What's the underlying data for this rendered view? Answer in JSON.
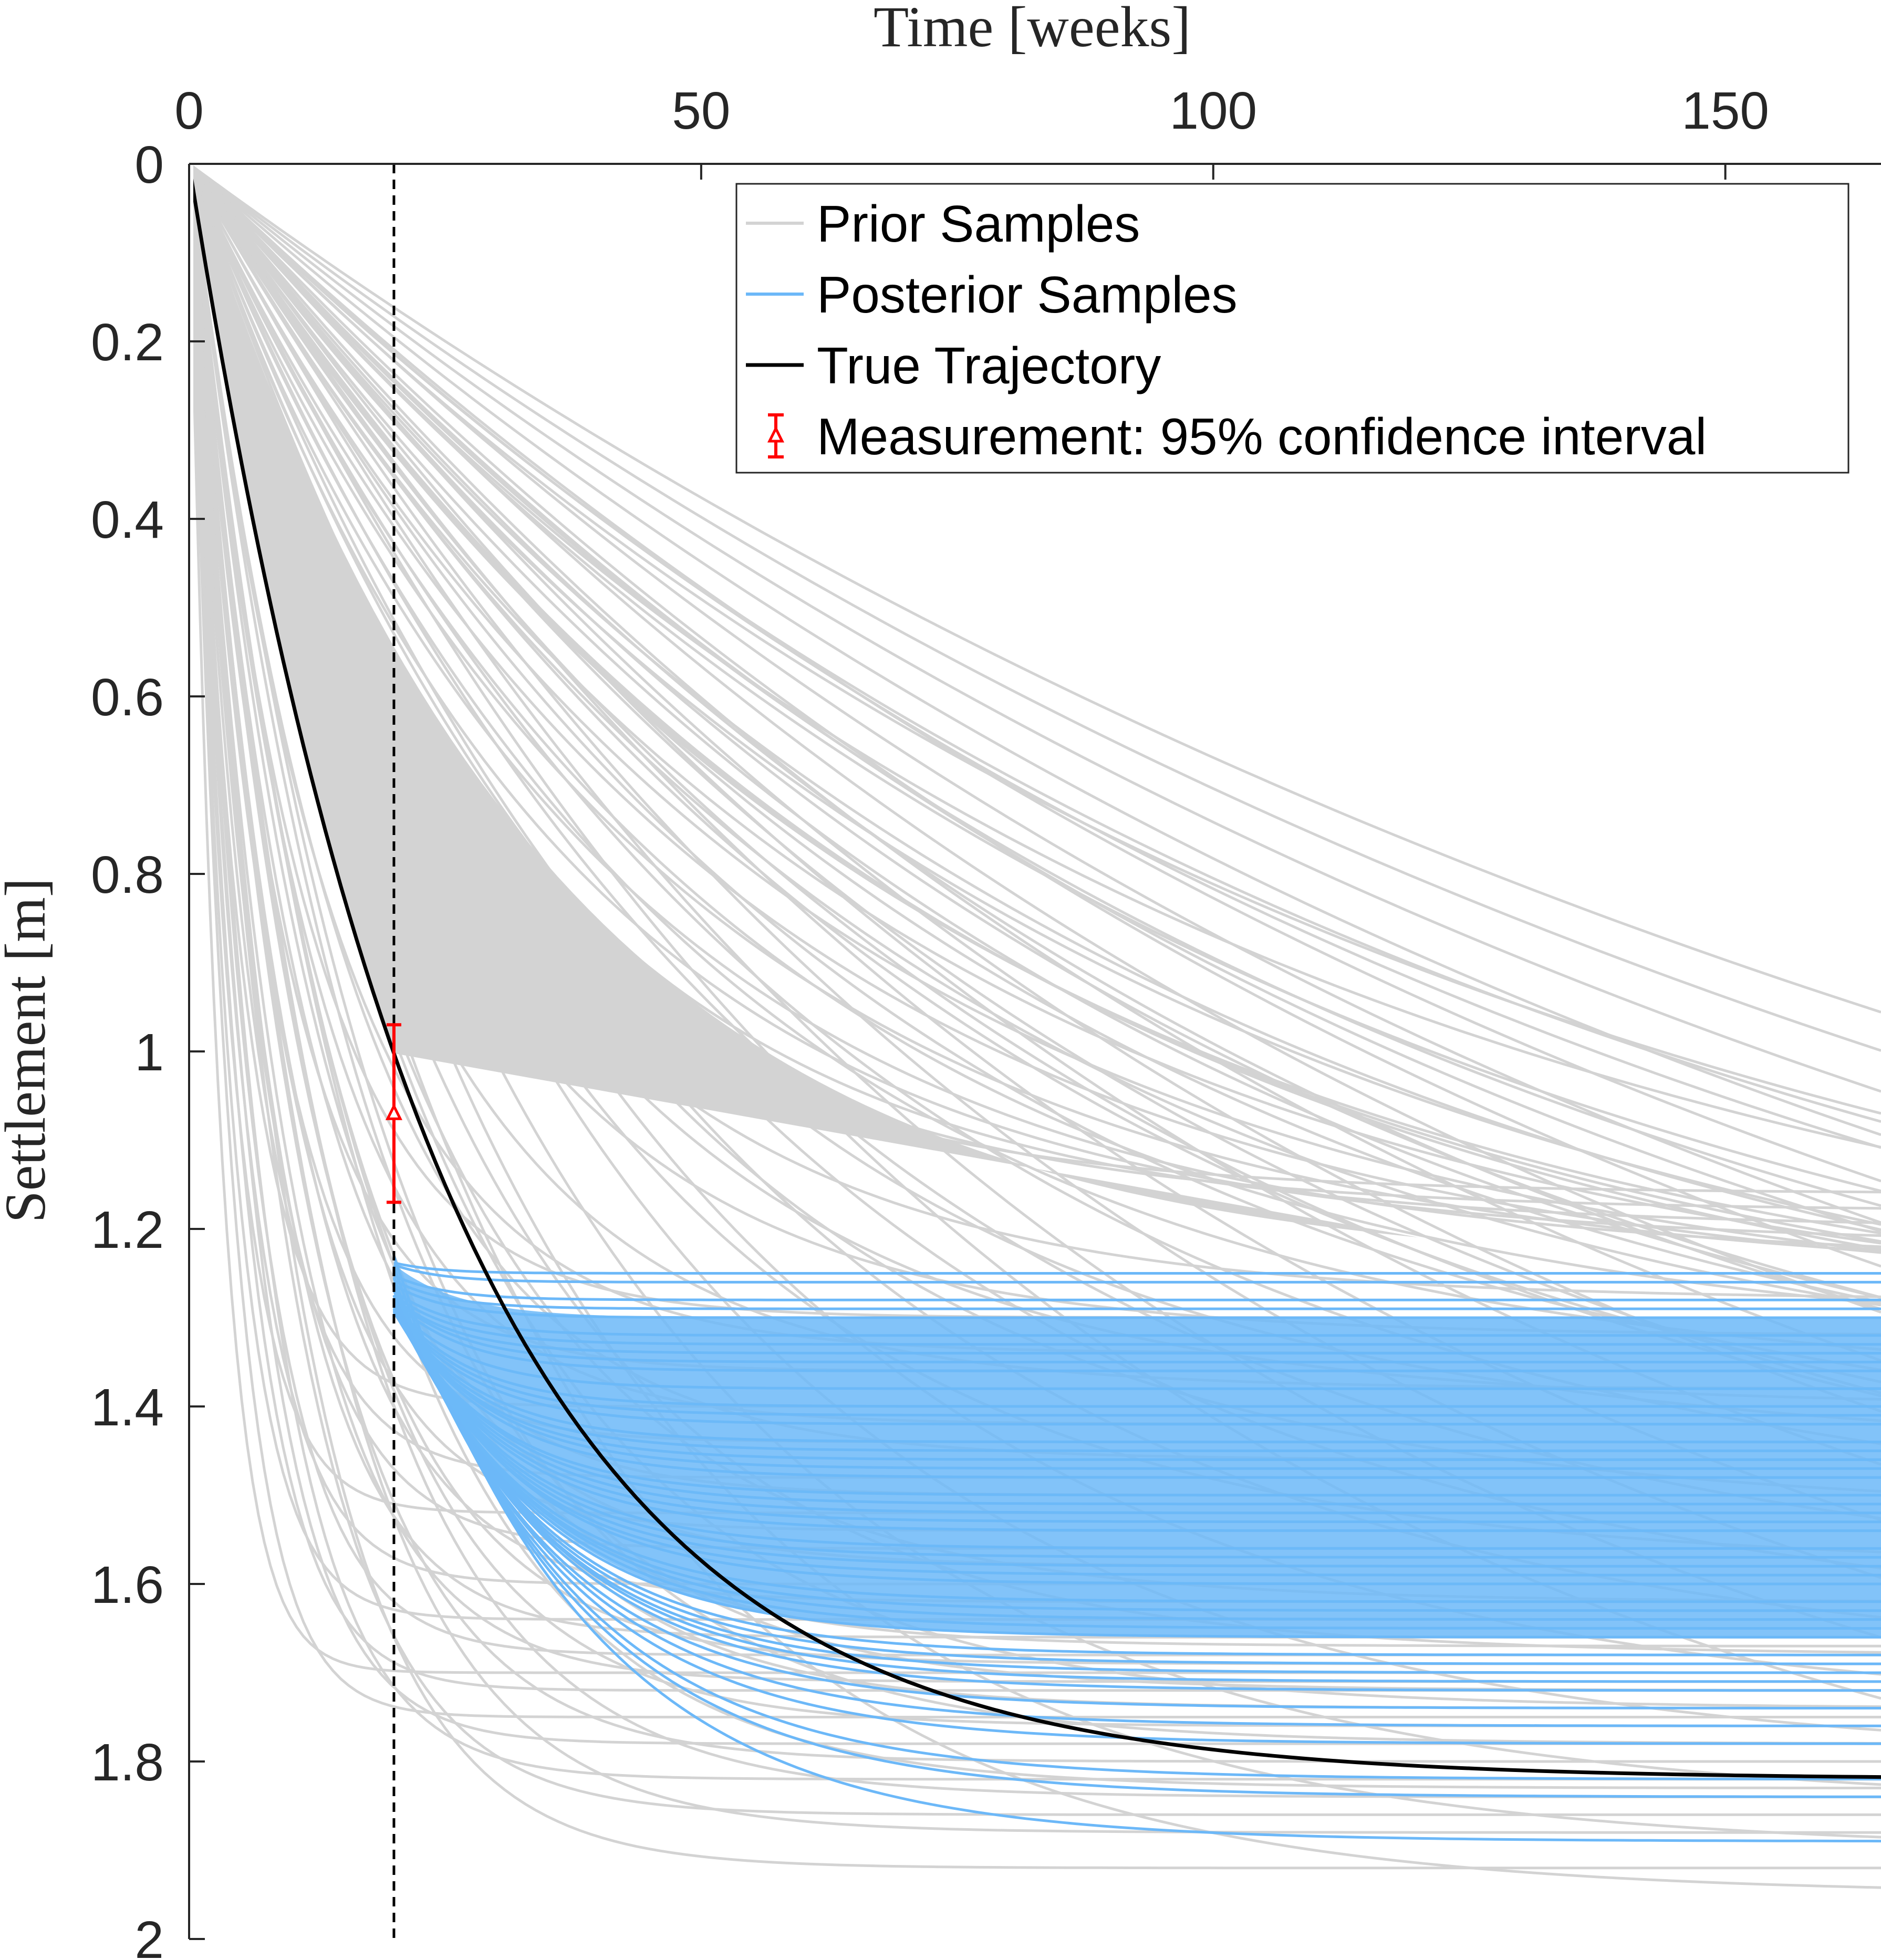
{
  "chart_data": {
    "type": "line",
    "title": "",
    "xlabel": "Time [weeks]",
    "ylabel": "Settlement [m]",
    "xlim": [
      0,
      160
    ],
    "ylim": [
      0,
      2
    ],
    "y_reversed": true,
    "x_axis_position": "top",
    "xticks": [
      0,
      50,
      100,
      150
    ],
    "xtick_labels": [
      "0",
      "50",
      "100",
      "150"
    ],
    "yticks": [
      0,
      0.2,
      0.4,
      0.6,
      0.8,
      1,
      1.2,
      1.4,
      1.6,
      1.8,
      2
    ],
    "ytick_labels": [
      "0",
      "0.2",
      "0.4",
      "0.6",
      "0.8",
      "1",
      "1.2",
      "1.4",
      "1.6",
      "1.8",
      "2"
    ],
    "grid": false,
    "measurement_time": 20,
    "legend": {
      "placement": "top-right",
      "entries": [
        {
          "label": "Prior Samples",
          "color": "#d3d3d3",
          "marker": "line"
        },
        {
          "label": "Posterior Samples",
          "color": "#6cb8f8",
          "marker": "line"
        },
        {
          "label": "True Trajectory",
          "color": "#000000",
          "marker": "line"
        },
        {
          "label": "Measurement: 95% confidence interval",
          "color": "#ff0000",
          "marker": "errorbar"
        }
      ]
    },
    "series": [
      {
        "name": "Prior Samples",
        "color": "#d3d3d3",
        "model": "settlement(t) = S_final * (1 - exp(-t / tau))",
        "samples": [
          {
            "S_final": 1.92,
            "tau": 10
          },
          {
            "S_final": 1.88,
            "tau": 12
          },
          {
            "S_final": 1.86,
            "tau": 9
          },
          {
            "S_final": 1.84,
            "tau": 14
          },
          {
            "S_final": 1.82,
            "tau": 7
          },
          {
            "S_final": 1.8,
            "tau": 11
          },
          {
            "S_final": 1.78,
            "tau": 6
          },
          {
            "S_final": 1.76,
            "tau": 13
          },
          {
            "S_final": 1.75,
            "tau": 4
          },
          {
            "S_final": 1.74,
            "tau": 16
          },
          {
            "S_final": 1.72,
            "tau": 5
          },
          {
            "S_final": 1.71,
            "tau": 9
          },
          {
            "S_final": 1.7,
            "tau": 3
          },
          {
            "S_final": 1.69,
            "tau": 12
          },
          {
            "S_final": 1.68,
            "tau": 6
          },
          {
            "S_final": 1.67,
            "tau": 15
          },
          {
            "S_final": 1.66,
            "tau": 8
          },
          {
            "S_final": 1.64,
            "tau": 4
          },
          {
            "S_final": 1.62,
            "tau": 10
          },
          {
            "S_final": 1.6,
            "tau": 5
          },
          {
            "S_final": 1.58,
            "tau": 13
          },
          {
            "S_final": 1.56,
            "tau": 7
          },
          {
            "S_final": 1.54,
            "tau": 9
          },
          {
            "S_final": 1.52,
            "tau": 4
          },
          {
            "S_final": 1.5,
            "tau": 11
          },
          {
            "S_final": 1.48,
            "tau": 6
          },
          {
            "S_final": 1.46,
            "tau": 16
          },
          {
            "S_final": 1.44,
            "tau": 8
          },
          {
            "S_final": 1.42,
            "tau": 12
          },
          {
            "S_final": 1.4,
            "tau": 5
          },
          {
            "S_final": 1.38,
            "tau": 20
          },
          {
            "S_final": 1.36,
            "tau": 9
          },
          {
            "S_final": 1.34,
            "tau": 14
          },
          {
            "S_final": 1.32,
            "tau": 24
          },
          {
            "S_final": 1.3,
            "tau": 11
          },
          {
            "S_final": 1.28,
            "tau": 28
          },
          {
            "S_final": 1.95,
            "tau": 30
          },
          {
            "S_final": 1.9,
            "tau": 34
          },
          {
            "S_final": 1.85,
            "tau": 38
          },
          {
            "S_final": 1.8,
            "tau": 42
          },
          {
            "S_final": 1.75,
            "tau": 46
          },
          {
            "S_final": 1.7,
            "tau": 50
          },
          {
            "S_final": 1.66,
            "tau": 54
          },
          {
            "S_final": 1.62,
            "tau": 58
          },
          {
            "S_final": 1.58,
            "tau": 36
          },
          {
            "S_final": 1.55,
            "tau": 62
          },
          {
            "S_final": 1.52,
            "tau": 40
          },
          {
            "S_final": 1.48,
            "tau": 66
          },
          {
            "S_final": 1.45,
            "tau": 44
          },
          {
            "S_final": 1.42,
            "tau": 70
          },
          {
            "S_final": 1.4,
            "tau": 32
          },
          {
            "S_final": 1.38,
            "tau": 48
          },
          {
            "S_final": 1.36,
            "tau": 74
          },
          {
            "S_final": 1.34,
            "tau": 52
          },
          {
            "S_final": 1.98,
            "tau": 80
          },
          {
            "S_final": 1.96,
            "tau": 88
          },
          {
            "S_final": 1.94,
            "tau": 96
          },
          {
            "S_final": 1.92,
            "tau": 104
          },
          {
            "S_final": 1.9,
            "tau": 112
          },
          {
            "S_final": 1.88,
            "tau": 120
          },
          {
            "S_final": 1.86,
            "tau": 128
          },
          {
            "S_final": 1.84,
            "tau": 136
          },
          {
            "S_final": 1.82,
            "tau": 144
          },
          {
            "S_final": 1.8,
            "tau": 152
          },
          {
            "S_final": 1.78,
            "tau": 160
          },
          {
            "S_final": 1.76,
            "tau": 170
          },
          {
            "S_final": 1.74,
            "tau": 180
          },
          {
            "S_final": 1.72,
            "tau": 190
          },
          {
            "S_final": 1.7,
            "tau": 200
          },
          {
            "S_final": 1.68,
            "tau": 95
          },
          {
            "S_final": 1.66,
            "tau": 110
          },
          {
            "S_final": 1.64,
            "tau": 125
          },
          {
            "S_final": 1.62,
            "tau": 85
          },
          {
            "S_final": 1.6,
            "tau": 140
          },
          {
            "S_final": 1.58,
            "tau": 100
          },
          {
            "S_final": 1.56,
            "tau": 78
          },
          {
            "S_final": 1.54,
            "tau": 115
          },
          {
            "S_final": 1.52,
            "tau": 90
          },
          {
            "S_final": 1.5,
            "tau": 130
          },
          {
            "S_final": 1.48,
            "tau": 82
          },
          {
            "S_final": 1.46,
            "tau": 105
          },
          {
            "S_final": 1.44,
            "tau": 92
          },
          {
            "S_final": 1.42,
            "tau": 118
          },
          {
            "S_final": 1.4,
            "tau": 86
          },
          {
            "S_final": 1.38,
            "tau": 76
          },
          {
            "S_final": 1.36,
            "tau": 98
          },
          {
            "S_final": 1.34,
            "tau": 72
          },
          {
            "S_final": 1.32,
            "tau": 65
          },
          {
            "S_final": 1.3,
            "tau": 58
          },
          {
            "S_final": 1.28,
            "tau": 52
          },
          {
            "S_final": 1.26,
            "tau": 46
          },
          {
            "S_final": 1.24,
            "tau": 40
          },
          {
            "S_final": 1.22,
            "tau": 36
          },
          {
            "S_final": 1.2,
            "tau": 32
          },
          {
            "S_final": 1.18,
            "tau": 28
          },
          {
            "S_final": 1.16,
            "tau": 25
          },
          {
            "S_final": 1.62,
            "tau": 22
          },
          {
            "S_final": 1.68,
            "tau": 26
          },
          {
            "S_final": 1.72,
            "tau": 18
          },
          {
            "S_final": 1.74,
            "tau": 24
          },
          {
            "S_final": 1.78,
            "tau": 20
          },
          {
            "S_final": 1.83,
            "tau": 17
          }
        ]
      },
      {
        "name": "Posterior Samples",
        "color": "#6cb8f8",
        "t_start": 20,
        "model": "settlement(t) = S_final * (1 - exp(-t / tau))",
        "samples": [
          {
            "S_final": 1.25,
            "tau": 4.3
          },
          {
            "S_final": 1.26,
            "tau": 4.8
          },
          {
            "S_final": 1.28,
            "tau": 5.2
          },
          {
            "S_final": 1.3,
            "tau": 5.6
          },
          {
            "S_final": 1.32,
            "tau": 6.1
          },
          {
            "S_final": 1.34,
            "tau": 6.5
          },
          {
            "S_final": 1.36,
            "tau": 7.0
          },
          {
            "S_final": 1.38,
            "tau": 7.4
          },
          {
            "S_final": 1.4,
            "tau": 7.9
          },
          {
            "S_final": 1.42,
            "tau": 8.3
          },
          {
            "S_final": 1.44,
            "tau": 8.8
          },
          {
            "S_final": 1.46,
            "tau": 9.2
          },
          {
            "S_final": 1.48,
            "tau": 9.7
          },
          {
            "S_final": 1.5,
            "tau": 10.1
          },
          {
            "S_final": 1.52,
            "tau": 10.6
          },
          {
            "S_final": 1.54,
            "tau": 11.0
          },
          {
            "S_final": 1.56,
            "tau": 11.5
          },
          {
            "S_final": 1.58,
            "tau": 11.9
          },
          {
            "S_final": 1.6,
            "tau": 12.4
          },
          {
            "S_final": 1.62,
            "tau": 12.8
          },
          {
            "S_final": 1.64,
            "tau": 13.3
          },
          {
            "S_final": 1.66,
            "tau": 13.7
          },
          {
            "S_final": 1.68,
            "tau": 14.2
          },
          {
            "S_final": 1.7,
            "tau": 14.6
          },
          {
            "S_final": 1.72,
            "tau": 15.1
          },
          {
            "S_final": 1.74,
            "tau": 15.5
          },
          {
            "S_final": 1.76,
            "tau": 16.0
          },
          {
            "S_final": 1.78,
            "tau": 16.4
          },
          {
            "S_final": 1.82,
            "tau": 17.4
          },
          {
            "S_final": 1.84,
            "tau": 17.8
          },
          {
            "S_final": 1.89,
            "tau": 19.0
          },
          {
            "S_final": 1.45,
            "tau": 9.0
          },
          {
            "S_final": 1.51,
            "tau": 10.4
          },
          {
            "S_final": 1.57,
            "tau": 11.7
          },
          {
            "S_final": 1.63,
            "tau": 13.0
          },
          {
            "S_final": 1.69,
            "tau": 14.4
          },
          {
            "S_final": 1.35,
            "tau": 6.8
          },
          {
            "S_final": 1.41,
            "tau": 8.1
          },
          {
            "S_final": 1.47,
            "tau": 9.5
          },
          {
            "S_final": 1.53,
            "tau": 10.8
          },
          {
            "S_final": 1.59,
            "tau": 12.1
          },
          {
            "S_final": 1.65,
            "tau": 13.5
          },
          {
            "S_final": 1.71,
            "tau": 14.9
          },
          {
            "S_final": 1.29,
            "tau": 5.4
          },
          {
            "S_final": 1.33,
            "tau": 6.3
          }
        ]
      },
      {
        "name": "True Trajectory",
        "color": "#000000",
        "model": "settlement(t) = S_final * (1 - exp(-t / tau))",
        "S_final": 1.82,
        "tau": 25
      }
    ],
    "measurement": {
      "t": 20,
      "mean": 1.07,
      "ci_lower": 0.97,
      "ci_upper": 1.17,
      "color": "#ff0000"
    }
  }
}
